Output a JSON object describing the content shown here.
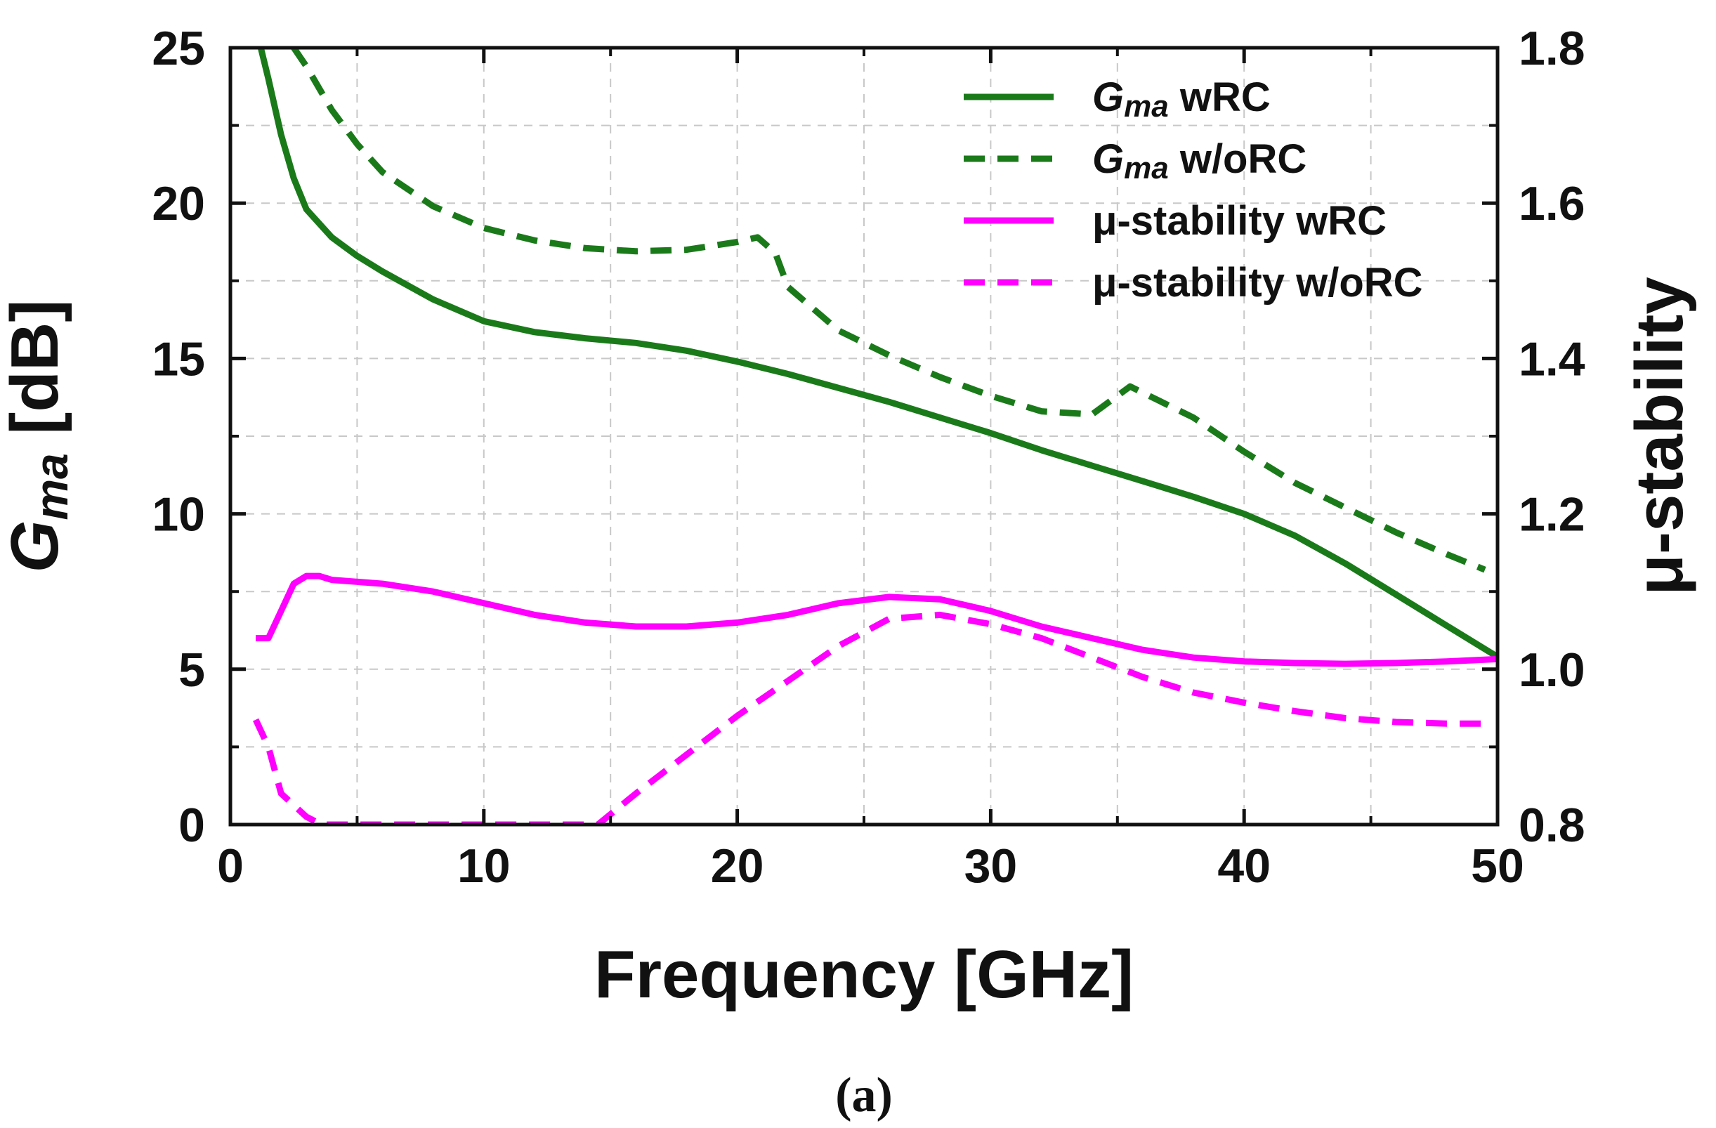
{
  "chart_data": {
    "type": "line",
    "caption": "(a)",
    "xlabel": "Frequency [GHz]",
    "ylabel": {
      "main": "G",
      "sub": "ma",
      "rest": " [dB]"
    },
    "y2label": "μ-stability",
    "xlim": [
      0,
      50
    ],
    "ylim": [
      0,
      25
    ],
    "y2lim": [
      0.8,
      1.8
    ],
    "xticks": [
      0,
      10,
      20,
      30,
      40,
      50
    ],
    "xtick_labels": [
      "0",
      "10",
      "20",
      "30",
      "40",
      "50"
    ],
    "yticks": [
      0,
      5,
      10,
      15,
      20,
      25
    ],
    "ytick_labels": [
      "0",
      "5",
      "10",
      "15",
      "20",
      "25"
    ],
    "y2ticks": [
      0.8,
      1.0,
      1.2,
      1.4,
      1.6,
      1.8
    ],
    "y2tick_labels": [
      "0.8",
      "1.0",
      "1.2",
      "1.4",
      "1.6",
      "1.8"
    ],
    "grid": true,
    "legend_position": "top-right",
    "colors": {
      "green": "#1a7a1a",
      "magenta": "#ff00ff",
      "axis": "#111111",
      "grid": "#c8c8c8"
    },
    "series": [
      {
        "name": "Gma wRC",
        "legend_main": "G",
        "legend_sub": "ma",
        "legend_rest": " wRC",
        "axis": "left",
        "color": "#1a7a1a",
        "dash": "solid",
        "x": [
          1.2,
          1.5,
          2,
          2.5,
          3,
          4,
          5,
          6,
          8,
          10,
          12,
          14,
          16,
          18,
          20,
          22,
          24,
          26,
          28,
          30,
          32,
          34,
          36,
          38,
          40,
          42,
          44,
          46,
          48,
          50
        ],
        "y": [
          25,
          24,
          22.2,
          20.8,
          19.8,
          18.9,
          18.3,
          17.8,
          16.9,
          16.2,
          15.85,
          15.65,
          15.5,
          15.25,
          14.9,
          14.5,
          14.05,
          13.6,
          13.1,
          12.6,
          12.05,
          11.55,
          11.05,
          10.55,
          10.0,
          9.3,
          8.4,
          7.4,
          6.4,
          5.4
        ]
      },
      {
        "name": "Gma w/oRC",
        "legend_main": "G",
        "legend_sub": "ma",
        "legend_rest": " w/oRC",
        "axis": "left",
        "color": "#1a7a1a",
        "dash": "dashed",
        "x": [
          2.5,
          3,
          4,
          5,
          6,
          8,
          10,
          12,
          14,
          16,
          18,
          20,
          20.8,
          21.5,
          22,
          24,
          26,
          28,
          30,
          32,
          34,
          35,
          35.5,
          36,
          38,
          40,
          42,
          44,
          46,
          48,
          49.5
        ],
        "y": [
          25,
          24.4,
          23.0,
          21.9,
          21.0,
          19.9,
          19.2,
          18.8,
          18.55,
          18.45,
          18.5,
          18.75,
          18.9,
          18.4,
          17.3,
          15.9,
          15.1,
          14.4,
          13.8,
          13.3,
          13.2,
          13.8,
          14.1,
          13.9,
          13.1,
          12.0,
          11.0,
          10.2,
          9.4,
          8.7,
          8.2
        ]
      },
      {
        "name": "μ-stability wRC",
        "legend_text": "μ-stability wRC",
        "axis": "right",
        "color": "#ff00ff",
        "dash": "solid",
        "x": [
          1,
          1.5,
          2,
          2.5,
          3,
          3.5,
          4,
          6,
          8,
          10,
          12,
          14,
          16,
          18,
          20,
          22,
          24,
          26,
          28,
          30,
          32,
          34,
          36,
          38,
          40,
          42,
          44,
          46,
          48,
          50
        ],
        "y": [
          1.04,
          1.04,
          1.075,
          1.11,
          1.12,
          1.12,
          1.115,
          1.11,
          1.1,
          1.085,
          1.07,
          1.06,
          1.055,
          1.055,
          1.06,
          1.07,
          1.085,
          1.093,
          1.09,
          1.075,
          1.055,
          1.04,
          1.025,
          1.015,
          1.01,
          1.008,
          1.007,
          1.008,
          1.01,
          1.013
        ]
      },
      {
        "name": "μ-stability w/oRC",
        "legend_text": "μ-stability w/oRC",
        "axis": "right",
        "color": "#ff00ff",
        "dash": "dashed",
        "x": [
          1,
          1.5,
          2,
          3,
          3.6,
          14.5,
          16,
          18,
          20,
          22,
          24,
          26,
          28,
          30,
          32,
          34,
          36,
          38,
          40,
          42,
          44,
          46,
          48,
          49.5
        ],
        "y": [
          0.935,
          0.9,
          0.84,
          0.81,
          0.8,
          0.8,
          0.84,
          0.89,
          0.94,
          0.985,
          1.03,
          1.065,
          1.07,
          1.058,
          1.04,
          1.015,
          0.99,
          0.97,
          0.957,
          0.946,
          0.937,
          0.932,
          0.93,
          0.93
        ]
      }
    ]
  }
}
